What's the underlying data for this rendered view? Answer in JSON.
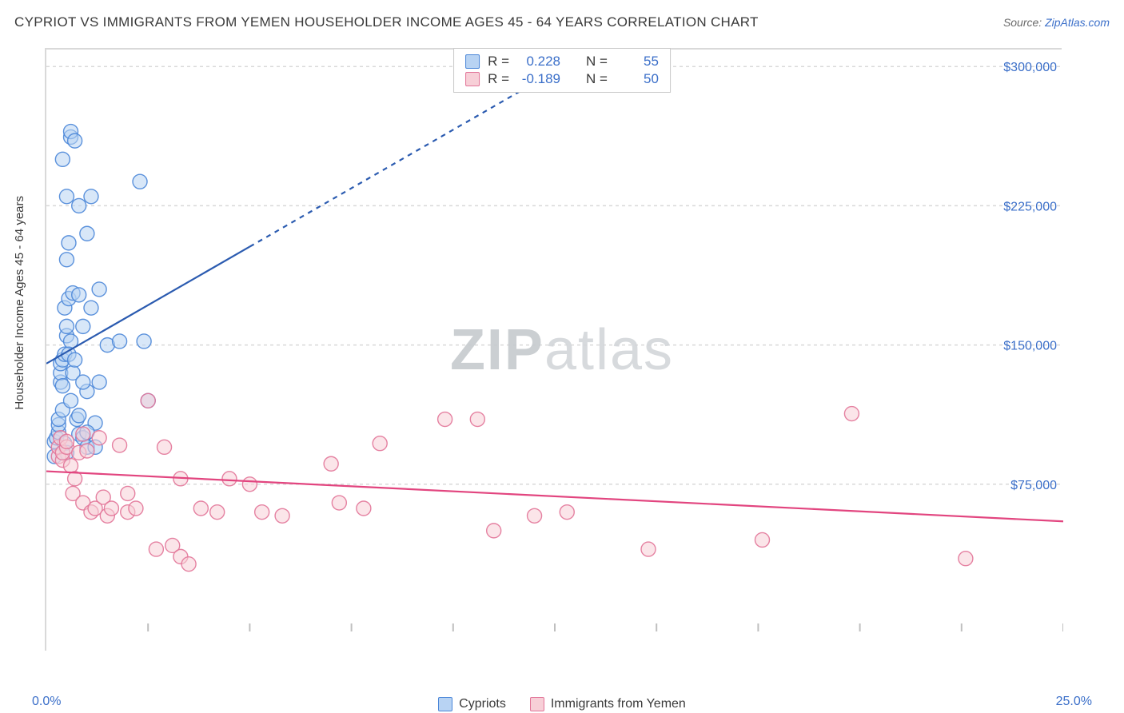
{
  "title": "CYPRIOT VS IMMIGRANTS FROM YEMEN HOUSEHOLDER INCOME AGES 45 - 64 YEARS CORRELATION CHART",
  "source_label": "Source: ",
  "source_link_text": "ZipAtlas.com",
  "y_axis_label": "Householder Income Ages 45 - 64 years",
  "watermark_left": "ZIP",
  "watermark_right": "atlas",
  "chart": {
    "type": "scatter",
    "x_min": 0.0,
    "x_max": 25.0,
    "x_min_label": "0.0%",
    "x_max_label": "25.0%",
    "x_ticks_pct": [
      2.5,
      5.0,
      7.5,
      10.0,
      12.5,
      15.0,
      17.5,
      20.0,
      22.5,
      25.0
    ],
    "y_min": 0,
    "y_max": 310000,
    "y_gridlines": [
      75000,
      150000,
      225000,
      300000
    ],
    "y_tick_labels": [
      "$75,000",
      "$150,000",
      "$225,000",
      "$300,000"
    ],
    "background_color": "#ffffff",
    "grid_color": "#d9d9d9",
    "grid_dash": "4,4",
    "axis_label_color": "#3b6fc9",
    "text_color": "#3a3a3a",
    "tick_fontsize": 16,
    "title_fontsize": 17,
    "marker_radius": 9,
    "marker_opacity": 0.55,
    "marker_stroke_opacity": 0.9,
    "line_width": 2.2,
    "series": [
      {
        "name": "Cypriots",
        "color_fill": "#b8d3f3",
        "color_stroke": "#4a86d8",
        "color_line": "#2b5bb0",
        "r_value": "0.228",
        "n_value": "55",
        "trend_start": [
          0.0,
          140000
        ],
        "trend_dash_from_x": 5.0,
        "trend_end": [
          13.5,
          310000
        ],
        "points": [
          [
            0.2,
            90000
          ],
          [
            0.2,
            98000
          ],
          [
            0.25,
            100000
          ],
          [
            0.3,
            103000
          ],
          [
            0.3,
            107000
          ],
          [
            0.3,
            110000
          ],
          [
            0.35,
            130000
          ],
          [
            0.35,
            135000
          ],
          [
            0.35,
            140000
          ],
          [
            0.4,
            115000
          ],
          [
            0.4,
            128000
          ],
          [
            0.4,
            142000
          ],
          [
            0.4,
            250000
          ],
          [
            0.45,
            145000
          ],
          [
            0.45,
            170000
          ],
          [
            0.5,
            155000
          ],
          [
            0.5,
            160000
          ],
          [
            0.5,
            196000
          ],
          [
            0.5,
            230000
          ],
          [
            0.55,
            175000
          ],
          [
            0.55,
            205000
          ],
          [
            0.6,
            120000
          ],
          [
            0.6,
            152000
          ],
          [
            0.6,
            262000
          ],
          [
            0.6,
            265000
          ],
          [
            0.65,
            178000
          ],
          [
            0.7,
            260000
          ],
          [
            0.75,
            110000
          ],
          [
            0.8,
            102000
          ],
          [
            0.8,
            112000
          ],
          [
            0.8,
            225000
          ],
          [
            0.9,
            100000
          ],
          [
            0.9,
            160000
          ],
          [
            1.0,
            95000
          ],
          [
            1.0,
            125000
          ],
          [
            1.0,
            210000
          ],
          [
            1.1,
            170000
          ],
          [
            1.1,
            230000
          ],
          [
            1.2,
            95000
          ],
          [
            1.2,
            108000
          ],
          [
            1.3,
            130000
          ],
          [
            1.3,
            180000
          ],
          [
            1.5,
            150000
          ],
          [
            1.8,
            152000
          ],
          [
            2.3,
            238000
          ],
          [
            2.4,
            152000
          ],
          [
            2.5,
            120000
          ],
          [
            0.45,
            97000
          ],
          [
            0.5,
            92000
          ],
          [
            0.55,
            145000
          ],
          [
            0.65,
            135000
          ],
          [
            0.7,
            142000
          ],
          [
            0.8,
            177000
          ],
          [
            0.9,
            130000
          ],
          [
            1.0,
            103000
          ]
        ]
      },
      {
        "name": "Immigrants from Yemen",
        "color_fill": "#f7cfd7",
        "color_stroke": "#e27498",
        "color_line": "#e2457f",
        "r_value": "-0.189",
        "n_value": "50",
        "trend_start": [
          0.0,
          82000
        ],
        "trend_end": [
          25.0,
          55000
        ],
        "points": [
          [
            0.3,
            90000
          ],
          [
            0.3,
            95000
          ],
          [
            0.35,
            100000
          ],
          [
            0.4,
            88000
          ],
          [
            0.4,
            92000
          ],
          [
            0.5,
            95000
          ],
          [
            0.5,
            98000
          ],
          [
            0.6,
            85000
          ],
          [
            0.65,
            70000
          ],
          [
            0.7,
            78000
          ],
          [
            0.8,
            92000
          ],
          [
            0.9,
            102000
          ],
          [
            0.9,
            65000
          ],
          [
            1.0,
            93000
          ],
          [
            1.1,
            60000
          ],
          [
            1.2,
            62000
          ],
          [
            1.3,
            100000
          ],
          [
            1.4,
            68000
          ],
          [
            1.5,
            58000
          ],
          [
            1.6,
            62000
          ],
          [
            1.8,
            96000
          ],
          [
            2.0,
            60000
          ],
          [
            2.0,
            70000
          ],
          [
            2.2,
            62000
          ],
          [
            2.5,
            120000
          ],
          [
            2.7,
            40000
          ],
          [
            2.9,
            95000
          ],
          [
            3.1,
            42000
          ],
          [
            3.3,
            78000
          ],
          [
            3.3,
            36000
          ],
          [
            3.5,
            32000
          ],
          [
            3.8,
            62000
          ],
          [
            4.2,
            60000
          ],
          [
            4.5,
            78000
          ],
          [
            5.0,
            75000
          ],
          [
            5.3,
            60000
          ],
          [
            5.8,
            58000
          ],
          [
            7.0,
            86000
          ],
          [
            7.2,
            65000
          ],
          [
            7.8,
            62000
          ],
          [
            8.2,
            97000
          ],
          [
            9.8,
            110000
          ],
          [
            10.6,
            110000
          ],
          [
            11.0,
            50000
          ],
          [
            12.0,
            58000
          ],
          [
            12.8,
            60000
          ],
          [
            14.8,
            40000
          ],
          [
            17.6,
            45000
          ],
          [
            19.8,
            113000
          ],
          [
            22.6,
            35000
          ]
        ]
      }
    ]
  },
  "legend_r_label": "R =",
  "legend_n_label": "N ="
}
